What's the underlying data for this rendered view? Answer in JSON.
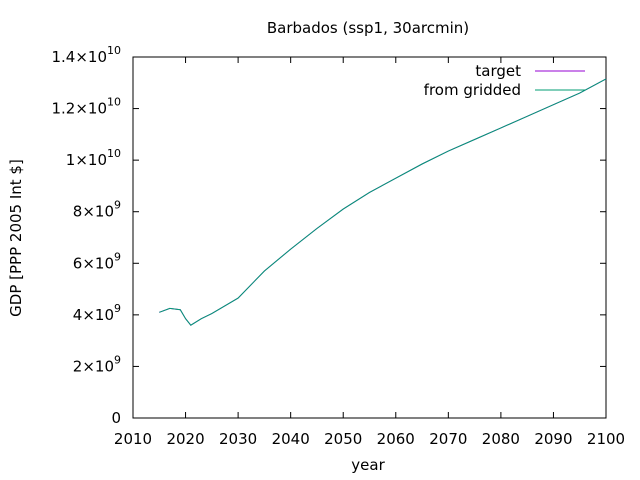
{
  "chart_data": {
    "type": "line",
    "title": "Barbados (ssp1, 30arcmin)",
    "xlabel": "year",
    "ylabel": "GDP [PPP 2005 Int $]",
    "xlim": [
      2010,
      2100
    ],
    "ylim": [
      0,
      14000000000
    ],
    "grid": false,
    "legend_position": "top-right",
    "x_ticks": [
      2010,
      2020,
      2030,
      2040,
      2050,
      2060,
      2070,
      2080,
      2090,
      2100
    ],
    "y_ticks": [
      {
        "value": 0,
        "mantissa": "0",
        "exponent": ""
      },
      {
        "value": 2000000000,
        "mantissa": "2×10",
        "exponent": "9"
      },
      {
        "value": 4000000000,
        "mantissa": "4×10",
        "exponent": "9"
      },
      {
        "value": 6000000000,
        "mantissa": "6×10",
        "exponent": "9"
      },
      {
        "value": 8000000000,
        "mantissa": "8×10",
        "exponent": "9"
      },
      {
        "value": 10000000000,
        "mantissa": "1×10",
        "exponent": "10"
      },
      {
        "value": 12000000000,
        "mantissa": "1.2×10",
        "exponent": "10"
      },
      {
        "value": 14000000000,
        "mantissa": "1.4×10",
        "exponent": "10"
      }
    ],
    "series": [
      {
        "name": "target",
        "color": "#9400d3",
        "x": [
          2015,
          2017,
          2019,
          2020,
          2021,
          2023,
          2025,
          2030,
          2035,
          2040,
          2045,
          2050,
          2055,
          2060,
          2065,
          2070,
          2075,
          2080,
          2085,
          2090,
          2095,
          2100
        ],
        "y": [
          4100000000,
          4250000000,
          4200000000,
          3850000000,
          3600000000,
          3850000000,
          4050000000,
          4650000000,
          5700000000,
          6550000000,
          7350000000,
          8100000000,
          8750000000,
          9300000000,
          9850000000,
          10350000000,
          10800000000,
          11250000000,
          11700000000,
          12150000000,
          12600000000,
          13150000000
        ]
      },
      {
        "name": "from gridded",
        "color": "#009e73",
        "x": [
          2015,
          2017,
          2019,
          2020,
          2021,
          2023,
          2025,
          2030,
          2035,
          2040,
          2045,
          2050,
          2055,
          2060,
          2065,
          2070,
          2075,
          2080,
          2085,
          2090,
          2095,
          2100
        ],
        "y": [
          4100000000,
          4250000000,
          4200000000,
          3850000000,
          3600000000,
          3850000000,
          4050000000,
          4650000000,
          5700000000,
          6550000000,
          7350000000,
          8100000000,
          8750000000,
          9300000000,
          9850000000,
          10350000000,
          10800000000,
          11250000000,
          11700000000,
          12150000000,
          12600000000,
          13150000000
        ]
      }
    ]
  }
}
